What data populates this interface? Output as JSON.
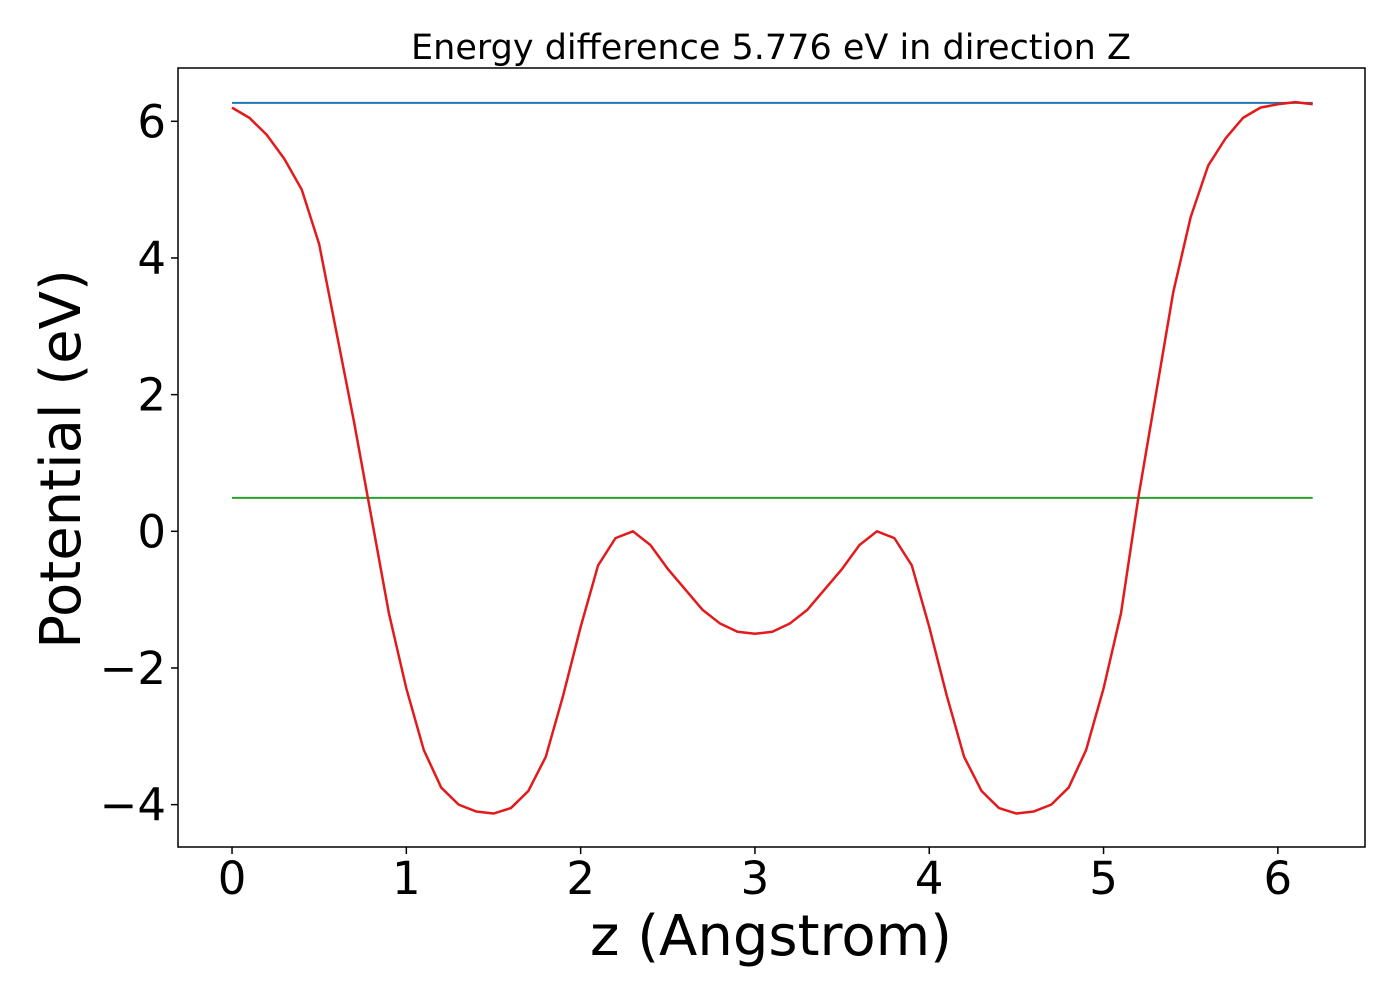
{
  "chart_data": {
    "type": "line",
    "title": "Energy difference 5.776 eV in direction Z",
    "xlabel": "z (Angstrom)",
    "ylabel": "Potential (eV)",
    "xlim": [
      -0.31,
      6.5
    ],
    "ylim": [
      -4.62,
      6.78
    ],
    "x_ticks": [
      0,
      1,
      2,
      3,
      4,
      5,
      6
    ],
    "x_tick_labels": [
      "0",
      "1",
      "2",
      "3",
      "4",
      "5",
      "6"
    ],
    "y_ticks": [
      -4,
      -2,
      0,
      2,
      4,
      6
    ],
    "y_tick_labels": [
      "−4",
      "−2",
      "0",
      "2",
      "4",
      "6"
    ],
    "grid": false,
    "series": [
      {
        "color": "#e31a1c",
        "x": [
          0,
          0.1,
          0.2,
          0.3,
          0.4,
          0.5,
          0.6,
          0.7,
          0.8,
          0.9,
          1.0,
          1.1,
          1.2,
          1.3,
          1.4,
          1.5,
          1.6,
          1.7,
          1.8,
          1.9,
          2.0,
          2.1,
          2.2,
          2.3,
          2.4,
          2.5,
          2.6,
          2.7,
          2.8,
          2.9,
          3.0,
          3.1,
          3.2,
          3.3,
          3.4,
          3.5,
          3.6,
          3.7,
          3.8,
          3.9,
          4.0,
          4.1,
          4.2,
          4.3,
          4.4,
          4.5,
          4.6,
          4.7,
          4.8,
          4.9,
          5.0,
          5.1,
          5.2,
          5.3,
          5.4,
          5.5,
          5.6,
          5.7,
          5.8,
          5.9,
          6.0,
          6.1,
          6.2
        ],
        "y": [
          6.2,
          6.05,
          5.8,
          5.45,
          5.0,
          4.2,
          2.9,
          1.6,
          0.2,
          -1.2,
          -2.3,
          -3.2,
          -3.75,
          -4.0,
          -4.1,
          -4.13,
          -4.05,
          -3.8,
          -3.3,
          -2.4,
          -1.4,
          -0.5,
          -0.1,
          0.0,
          -0.2,
          -0.55,
          -0.85,
          -1.15,
          -1.35,
          -1.47,
          -1.5,
          -1.47,
          -1.35,
          -1.15,
          -0.85,
          -0.55,
          -0.2,
          0.0,
          -0.1,
          -0.5,
          -1.4,
          -2.4,
          -3.3,
          -3.8,
          -4.05,
          -4.13,
          -4.1,
          -4.0,
          -3.75,
          -3.2,
          -2.3,
          -1.2,
          0.5,
          2.0,
          3.5,
          4.6,
          5.35,
          5.75,
          6.05,
          6.2,
          6.25,
          6.28,
          6.25
        ]
      },
      {
        "color": "#1f77b4",
        "x": [
          0,
          6.2
        ],
        "y": [
          6.27,
          6.27
        ]
      },
      {
        "color": "#2ca02c",
        "x": [
          0,
          6.2
        ],
        "y": [
          0.49,
          0.49
        ]
      }
    ]
  }
}
